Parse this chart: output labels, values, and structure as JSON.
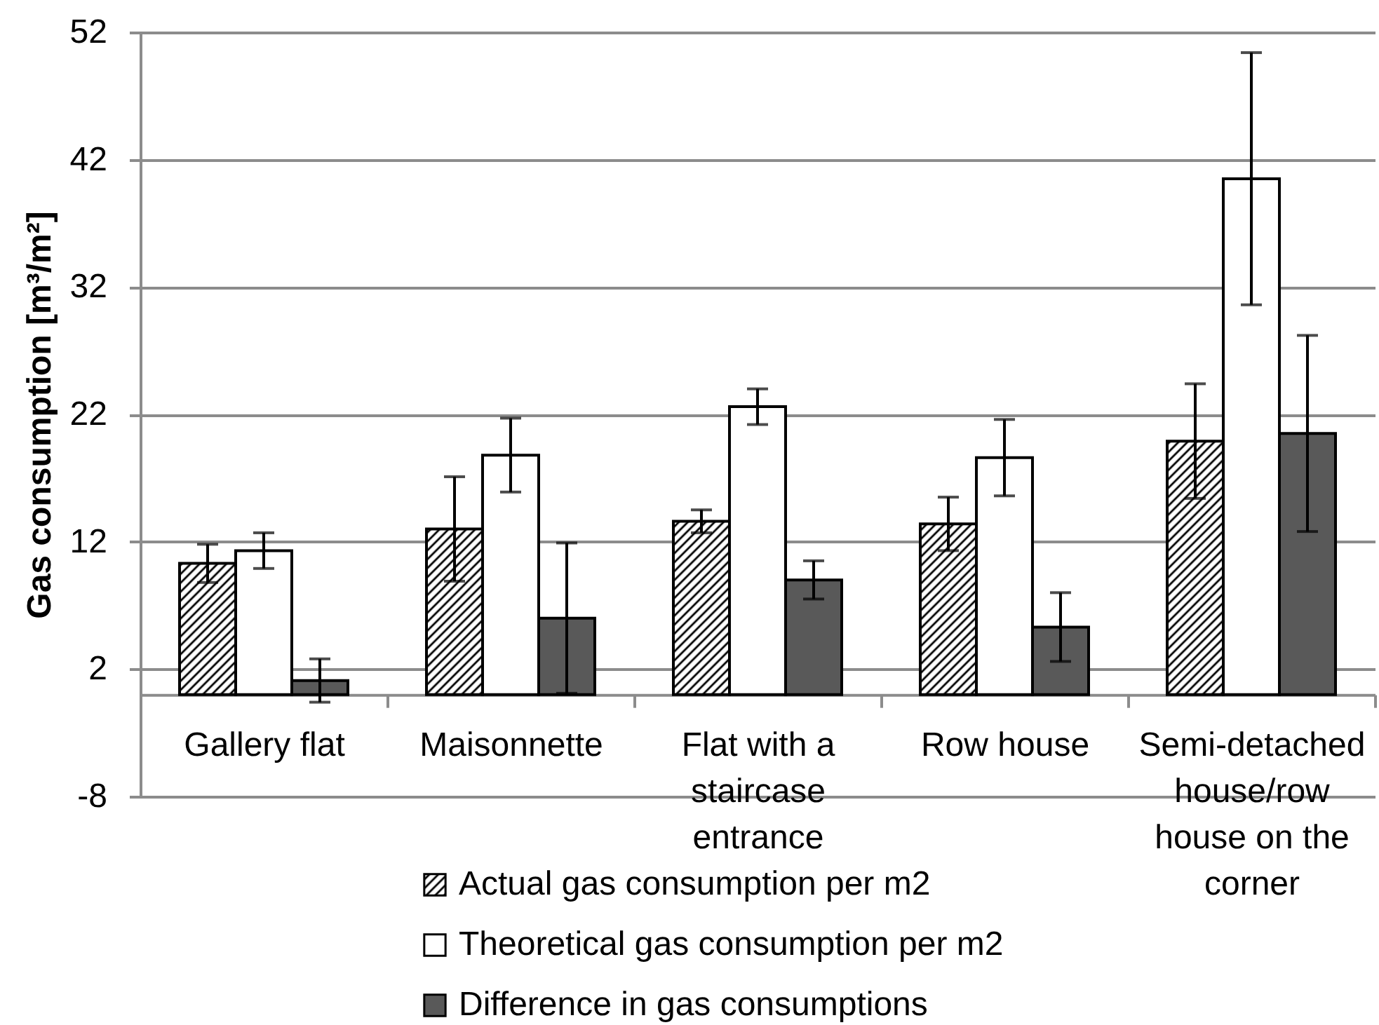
{
  "chart_data": {
    "type": "bar",
    "ylabel": "Gas consumption [m³/m²]",
    "categories": [
      "Gallery flat",
      "Maisonnette",
      "Flat with a staircase entrance",
      "Row house",
      "Semi-detached house/row house on the corner"
    ],
    "series": [
      {
        "name": "Actual gas consumption per m2",
        "color": "#000000",
        "values": [
          10.3,
          13.0,
          13.6,
          13.4,
          19.9
        ],
        "errors": [
          1.5,
          4.1,
          0.9,
          2.1,
          4.5
        ]
      },
      {
        "name": "Theoretical gas consumption per m2",
        "color": "#ffffff",
        "values": [
          11.3,
          18.8,
          22.6,
          18.6,
          40.5
        ],
        "errors": [
          1.4,
          2.9,
          1.4,
          3.0,
          9.9
        ]
      },
      {
        "name": "Difference in gas consumptions",
        "color": "#595959",
        "values": [
          1.1,
          6.0,
          9.0,
          5.3,
          20.5
        ],
        "errors": [
          1.7,
          5.9,
          1.5,
          2.7,
          7.7
        ]
      }
    ],
    "ylim": [
      -8,
      52
    ],
    "yticks": [
      -8,
      2,
      12,
      22,
      32,
      42,
      52
    ],
    "grid": "y",
    "legend": "bottom"
  }
}
